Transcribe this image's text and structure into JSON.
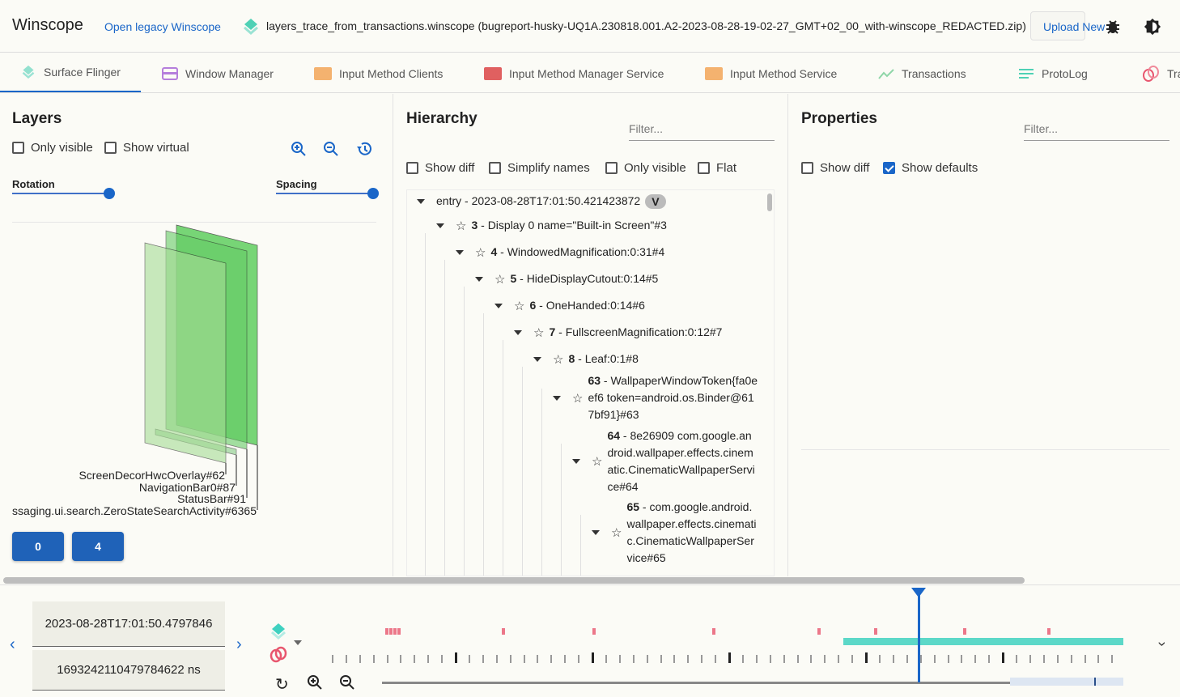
{
  "header": {
    "app_title": "Winscope",
    "legacy_link": "Open legacy Winscope",
    "file_name": "layers_trace_from_transactions.winscope (bugreport-husky-UQ1A.230818.001.A2-2023-08-28-19-02-27_GMT+02_00_with-winscope_REDACTED.zip)",
    "upload_label": "Upload New",
    "icons": [
      "layers-icon",
      "bug-icon",
      "theme-toggle-icon"
    ]
  },
  "tabs": [
    {
      "label": "Surface Flinger",
      "icon": "layers-icon",
      "color": "#4fd1b5",
      "active": true
    },
    {
      "label": "Window Manager",
      "icon": "window-icon",
      "color": "#b57edc"
    },
    {
      "label": "Input Method Clients",
      "icon": "keyboard-icon",
      "color": "#f4a261"
    },
    {
      "label": "Input Method Manager Service",
      "icon": "keyboard-icon",
      "color": "#e05c5c"
    },
    {
      "label": "Input Method Service",
      "icon": "keyboard-icon",
      "color": "#f4a261"
    },
    {
      "label": "Transactions",
      "icon": "chart-line-icon",
      "color": "#7fd1a0"
    },
    {
      "label": "ProtoLog",
      "icon": "list-icon",
      "color": "#4fd1b5"
    },
    {
      "label": "Tra",
      "icon": "rings-icon",
      "color": "#e8566e"
    }
  ],
  "layers": {
    "title": "Layers",
    "only_visible": {
      "label": "Only visible",
      "checked": false
    },
    "show_virtual": {
      "label": "Show virtual",
      "checked": false
    },
    "rotation": {
      "label": "Rotation",
      "value": 1.0
    },
    "spacing": {
      "label": "Spacing",
      "value": 1.0
    },
    "layer_labels": [
      "ScreenDecorHwcOverlay#62",
      "NavigationBar0#87",
      "StatusBar#91",
      "ssaging.ui.search.ZeroStateSearchActivity#6365"
    ],
    "display_buttons": [
      "0",
      "4"
    ]
  },
  "hierarchy": {
    "title": "Hierarchy",
    "filter_placeholder": "Filter...",
    "options": [
      {
        "label": "Show diff",
        "checked": false
      },
      {
        "label": "Simplify names",
        "checked": false
      },
      {
        "label": "Only visible",
        "checked": false
      },
      {
        "label": "Flat",
        "checked": false
      }
    ],
    "root": {
      "label": "entry - 2023-08-28T17:01:50.421423872",
      "badge": "V"
    },
    "nodes": [
      {
        "id": "3",
        "name": " - Display 0 name=\"Built-in Screen\"#3"
      },
      {
        "id": "4",
        "name": " - WindowedMagnification:0:31#4"
      },
      {
        "id": "5",
        "name": " - HideDisplayCutout:0:14#5"
      },
      {
        "id": "6",
        "name": " - OneHanded:0:14#6"
      },
      {
        "id": "7",
        "name": " - FullscreenMagnification:0:12#7"
      },
      {
        "id": "8",
        "name": " - Leaf:0:1#8"
      },
      {
        "id": "63",
        "name": " - WallpaperWindowToken{fa0eef6 token=android.os.Binder@617bf91}#63"
      },
      {
        "id": "64",
        "name": " - 8e26909 com.google.android.wallpaper.effects.cinematic.CinematicWallpaperService#64"
      },
      {
        "id": "65",
        "name": " - com.google.android.wallpaper.effects.cinematic.CinematicWallpaperService#65"
      }
    ]
  },
  "properties": {
    "title": "Properties",
    "filter_placeholder": "Filter...",
    "options": [
      {
        "label": "Show diff",
        "checked": false
      },
      {
        "label": "Show defaults",
        "checked": true
      }
    ]
  },
  "timeline": {
    "timestamp": "2023-08-28T17:01:50.4797846",
    "timestamp_ns": "1693242110479784622 ns",
    "accent": "#1a66c8",
    "transactions_color": "#e8566e",
    "layers_color": "#3fd1c0"
  }
}
